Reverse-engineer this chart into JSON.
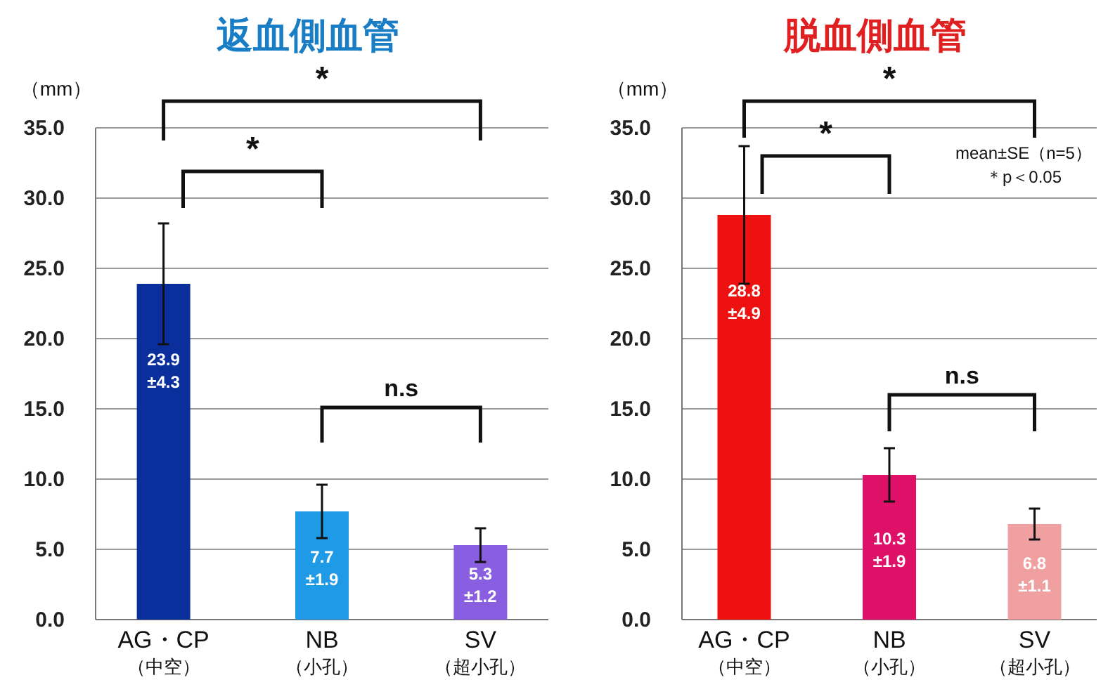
{
  "chart_data": [
    {
      "type": "bar",
      "title": "返血側血管",
      "ylabel": "（mm）",
      "categories": [
        "AG・CP\n（中空）",
        "NB\n（小孔）",
        "SV\n（超小孔）"
      ],
      "colors": [
        "#0a2f9c",
        "#1e9ae6",
        "#8a5ee0"
      ],
      "values": [
        23.9,
        7.7,
        5.3
      ],
      "errors": [
        4.3,
        1.9,
        1.2
      ],
      "value_labels": [
        "23.9\n±4.3",
        "7.7\n±1.9",
        "5.3\n±1.2"
      ],
      "ylim": [
        0,
        35
      ],
      "yticks": [
        {
          "value": 0,
          "label": "0.0"
        },
        {
          "value": 5,
          "label": "5.0"
        },
        {
          "value": 10,
          "label": "10.0"
        },
        {
          "value": 15,
          "label": "15.0"
        },
        {
          "value": 20,
          "label": "20.0"
        },
        {
          "value": 25,
          "label": "25.0"
        },
        {
          "value": 30,
          "label": "30.0"
        },
        {
          "value": 35,
          "label": "35.0"
        }
      ],
      "grid": "y",
      "annotations": [
        "*",
        "*",
        "n.s"
      ]
    },
    {
      "type": "bar",
      "title": "脱血側血管",
      "ylabel": "（mm）",
      "categories": [
        "AG・CP\n（中空）",
        "NB\n（小孔）",
        "SV\n（超小孔）"
      ],
      "colors": [
        "#ee1111",
        "#de1068",
        "#f0a0a0"
      ],
      "values": [
        28.8,
        10.3,
        6.8
      ],
      "errors": [
        4.9,
        1.9,
        1.1
      ],
      "value_labels": [
        "28.8\n±4.9",
        "10.3\n±1.9",
        "6.8\n±1.1"
      ],
      "ylim": [
        0,
        35
      ],
      "yticks": [
        {
          "value": 0,
          "label": "0.0"
        },
        {
          "value": 5,
          "label": "5.0"
        },
        {
          "value": 10,
          "label": "10.0"
        },
        {
          "value": 15,
          "label": "15.0"
        },
        {
          "value": 20,
          "label": "20.0"
        },
        {
          "value": 25,
          "label": "25.0"
        },
        {
          "value": 30,
          "label": "30.0"
        },
        {
          "value": 35,
          "label": "35.0"
        }
      ],
      "grid": "y",
      "annotations": [
        "*",
        "*",
        "n.s",
        "mean±SE（n=5）",
        "＊p＜0.05"
      ]
    }
  ]
}
